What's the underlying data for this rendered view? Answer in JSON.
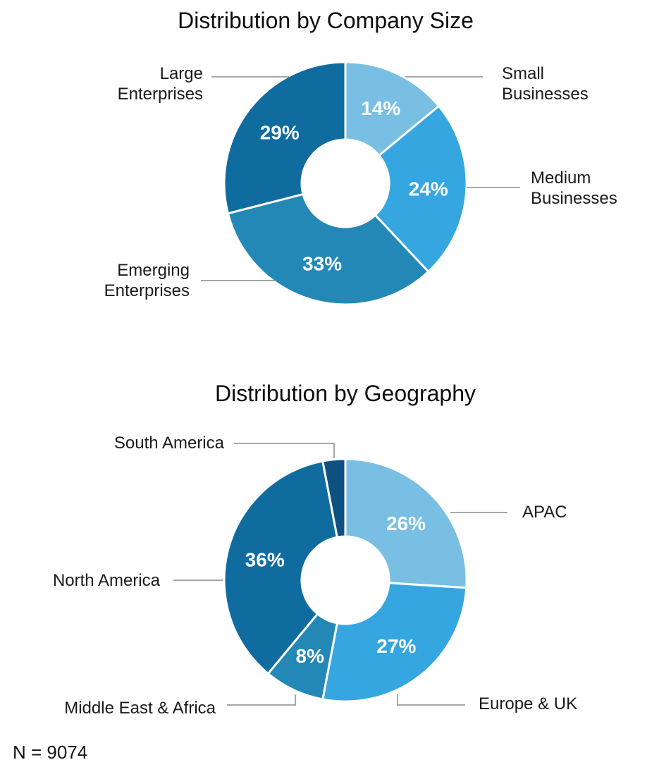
{
  "chart_data": [
    {
      "type": "pie",
      "title": "Distribution by Company Size",
      "slices": [
        {
          "label": "Small\nBusinesses",
          "value": 14,
          "display": "14%",
          "color": "#79bfe3"
        },
        {
          "label": "Medium\nBusinesses",
          "value": 24,
          "display": "24%",
          "color": "#35a6df"
        },
        {
          "label": "Emerging\nEnterprises",
          "value": 33,
          "display": "33%",
          "color": "#2388b5"
        },
        {
          "label": "Large\nEnterprises",
          "value": 29,
          "display": "29%",
          "color": "#106c9f"
        }
      ]
    },
    {
      "type": "pie",
      "title": "Distribution by Geography",
      "slices": [
        {
          "label": "APAC",
          "value": 26,
          "display": "26%",
          "color": "#79bfe3"
        },
        {
          "label": "Europe & UK",
          "value": 27,
          "display": "27%",
          "color": "#35a6df"
        },
        {
          "label": "Middle East & Africa",
          "value": 8,
          "display": "8%",
          "color": "#2388b5"
        },
        {
          "label": "North America",
          "value": 36,
          "display": "36%",
          "color": "#106c9f"
        },
        {
          "label": "South America",
          "value": 3,
          "display": "",
          "color": "#0d5180"
        }
      ]
    }
  ],
  "footnote": "N = 9074"
}
